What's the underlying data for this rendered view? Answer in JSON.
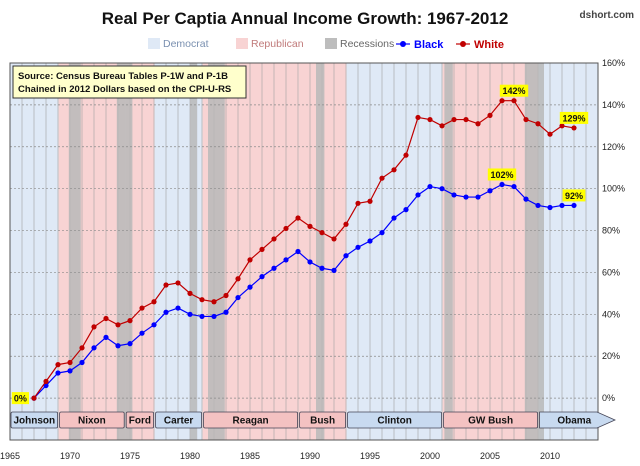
{
  "chart_data": {
    "type": "line",
    "title": "Real Per Captia Annual Income Growth: 1967-2012",
    "watermark": "dshort.com",
    "annotation_lines": [
      "Source: Census Bureau Tables P-1W and P-1B",
      "Chained in 2012 Dollars based on the CPI-U-RS"
    ],
    "xlim": [
      1965,
      2014
    ],
    "ylim": [
      -20,
      160
    ],
    "x_ticks": [
      1965,
      1970,
      1975,
      1980,
      1985,
      1990,
      1995,
      2000,
      2005,
      2010
    ],
    "y_ticks": [
      0,
      20,
      40,
      60,
      80,
      100,
      120,
      140,
      160
    ],
    "y_tick_labels": [
      "0%",
      "20%",
      "40%",
      "60%",
      "80%",
      "100%",
      "120%",
      "140%",
      "160%"
    ],
    "legend": {
      "position": "top",
      "items": [
        {
          "label": "Democrat",
          "kind": "band",
          "color": "#dfe9f6"
        },
        {
          "label": "Republican",
          "kind": "band",
          "color": "#f8d3d3"
        },
        {
          "label": "Recessions",
          "kind": "band",
          "color": "#bdbdbd"
        },
        {
          "label": "Black",
          "kind": "line",
          "color": "#0000ff"
        },
        {
          "label": "White",
          "kind": "line",
          "color": "#c00000"
        }
      ]
    },
    "colors": {
      "democrat": "#dfe9f6",
      "republican": "#f8d3d3",
      "recession": "#b8b8b8",
      "black": "#0000ff",
      "white": "#c00000",
      "callout": "#ffff00"
    },
    "presidents": [
      {
        "name": "Johnson",
        "party": "D",
        "start": 1963.9,
        "end": 1969.05
      },
      {
        "name": "Nixon",
        "party": "R",
        "start": 1969.05,
        "end": 1974.6
      },
      {
        "name": "Ford",
        "party": "R",
        "start": 1974.6,
        "end": 1977.05
      },
      {
        "name": "Carter",
        "party": "D",
        "start": 1977.05,
        "end": 1981.05
      },
      {
        "name": "Reagan",
        "party": "R",
        "start": 1981.05,
        "end": 1989.05
      },
      {
        "name": "Bush",
        "party": "R",
        "start": 1989.05,
        "end": 1993.05
      },
      {
        "name": "Clinton",
        "party": "D",
        "start": 1993.05,
        "end": 2001.05
      },
      {
        "name": "GW Bush",
        "party": "R",
        "start": 2001.05,
        "end": 2009.05
      },
      {
        "name": "Obama",
        "party": "D",
        "start": 2009.05,
        "end": 2014.0
      }
    ],
    "recessions": [
      [
        1969.9,
        1970.9
      ],
      [
        1973.9,
        1975.2
      ],
      [
        1980.0,
        1980.6
      ],
      [
        1981.5,
        1982.9
      ],
      [
        1990.5,
        1991.2
      ],
      [
        2001.2,
        2001.9
      ],
      [
        2007.9,
        2009.5
      ]
    ],
    "series": [
      {
        "name": "Black",
        "x": [
          1967,
          1968,
          1969,
          1970,
          1971,
          1972,
          1973,
          1974,
          1975,
          1976,
          1977,
          1978,
          1979,
          1980,
          1981,
          1982,
          1983,
          1984,
          1985,
          1986,
          1987,
          1988,
          1989,
          1990,
          1991,
          1992,
          1993,
          1994,
          1995,
          1996,
          1997,
          1998,
          1999,
          2000,
          2001,
          2002,
          2003,
          2004,
          2005,
          2006,
          2007,
          2008,
          2009,
          2010,
          2011,
          2012
        ],
        "values": [
          0,
          6,
          12,
          13,
          17,
          24,
          29,
          25,
          26,
          31,
          35,
          41,
          43,
          40,
          39,
          39,
          41,
          48,
          53,
          58,
          62,
          66,
          70,
          65,
          62,
          61,
          68,
          72,
          75,
          79,
          86,
          90,
          97,
          101,
          100,
          97,
          96,
          96,
          99,
          102,
          101,
          95,
          92,
          91,
          92,
          92
        ]
      },
      {
        "name": "White",
        "x": [
          1967,
          1968,
          1969,
          1970,
          1971,
          1972,
          1973,
          1974,
          1975,
          1976,
          1977,
          1978,
          1979,
          1980,
          1981,
          1982,
          1983,
          1984,
          1985,
          1986,
          1987,
          1988,
          1989,
          1990,
          1991,
          1992,
          1993,
          1994,
          1995,
          1996,
          1997,
          1998,
          1999,
          2000,
          2001,
          2002,
          2003,
          2004,
          2005,
          2006,
          2007,
          2008,
          2009,
          2010,
          2011,
          2012
        ],
        "values": [
          0,
          8,
          16,
          17,
          24,
          34,
          38,
          35,
          37,
          43,
          46,
          54,
          55,
          50,
          47,
          46,
          49,
          57,
          66,
          71,
          76,
          81,
          86,
          82,
          79,
          76,
          83,
          93,
          94,
          105,
          109,
          116,
          134,
          133,
          130,
          133,
          133,
          131,
          135,
          142,
          142,
          133,
          131,
          126,
          130,
          129
        ]
      }
    ],
    "callouts": [
      {
        "label": "0%",
        "x": 1967,
        "y": 0,
        "anchor": "left"
      },
      {
        "label": "142%",
        "x": 2007,
        "y": 142,
        "anchor": "above"
      },
      {
        "label": "102%",
        "x": 2006,
        "y": 102,
        "anchor": "above"
      },
      {
        "label": "129%",
        "x": 2012,
        "y": 129,
        "anchor": "above"
      },
      {
        "label": "92%",
        "x": 2012,
        "y": 92,
        "anchor": "above"
      }
    ]
  }
}
